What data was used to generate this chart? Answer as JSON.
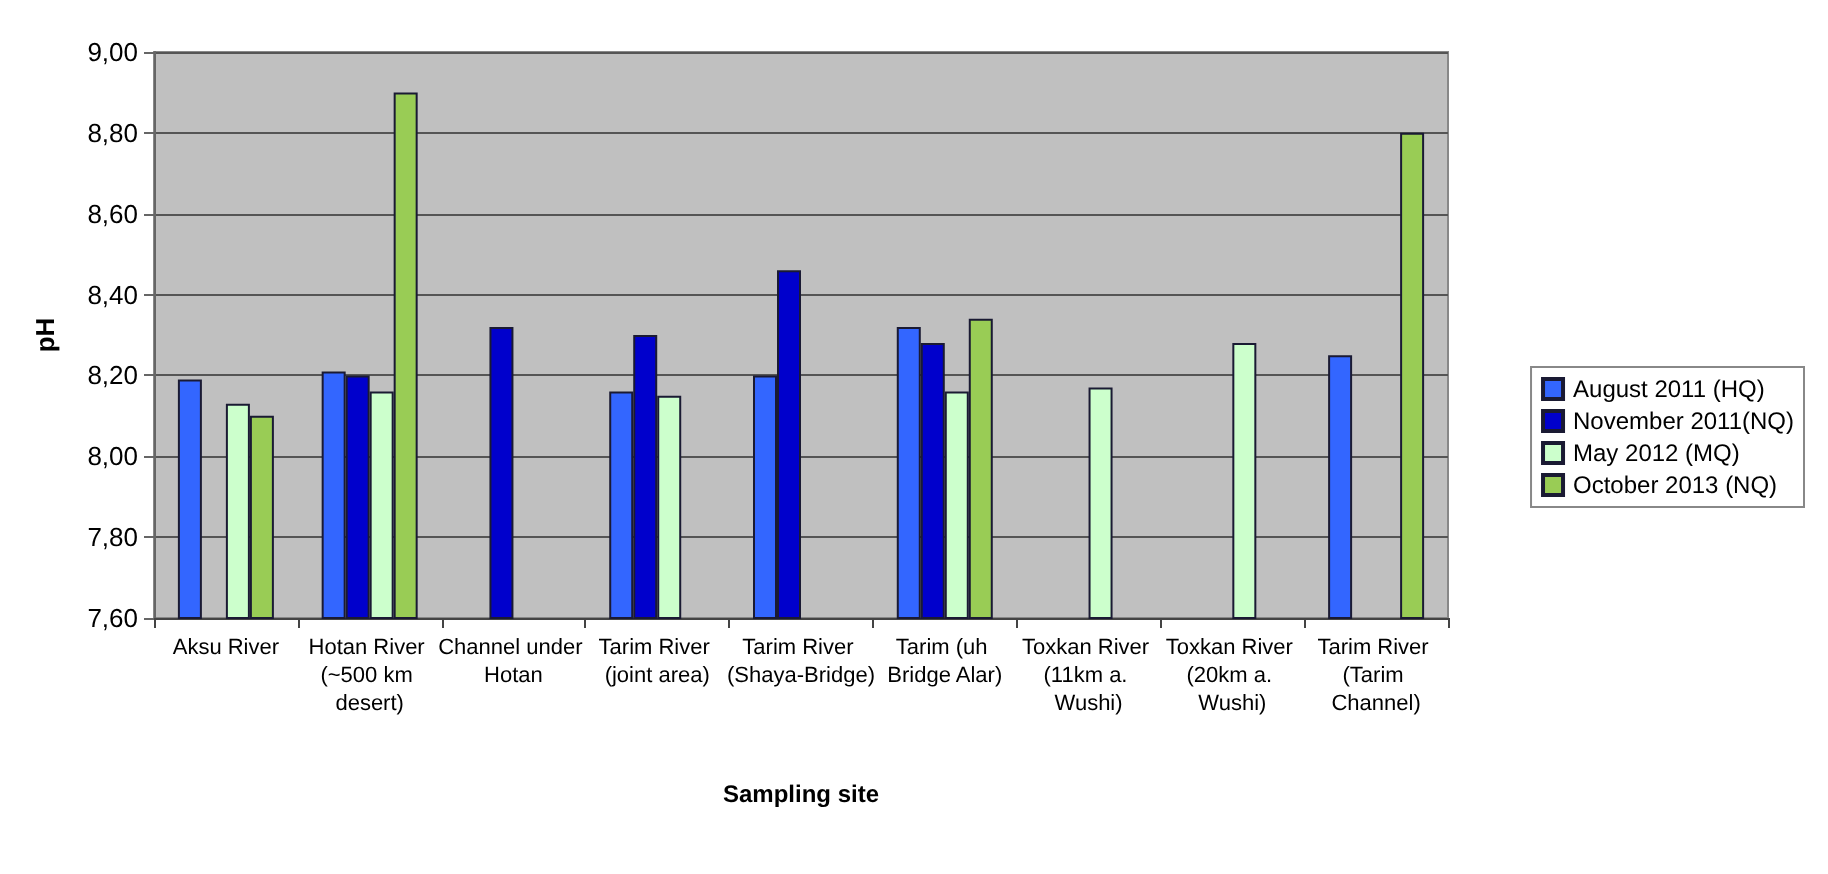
{
  "chart_data": {
    "type": "bar",
    "xlabel": "Sampling site",
    "ylabel": "pH",
    "categories": [
      "Aksu River",
      "Hotan River (~500 km desert)",
      "Channel under Hotan",
      "Tarim River (joint area)",
      "Tarim River (Shaya-Bridge)",
      "Tarim (uh Bridge Alar)",
      "Toxkan River (11km a. Wushi)",
      "Toxkan River (20km a. Wushi)",
      "Tarim River (Tarim Channel)"
    ],
    "series": [
      {
        "name": "August 2011 (HQ)",
        "color": "#3366ff",
        "values": [
          8.19,
          8.21,
          null,
          8.16,
          8.2,
          8.32,
          null,
          null,
          8.25
        ]
      },
      {
        "name": "November 2011(NQ)",
        "color": "#0000cc",
        "values": [
          null,
          8.2,
          8.32,
          8.3,
          8.46,
          8.28,
          null,
          null,
          null
        ]
      },
      {
        "name": "May 2012 (MQ)",
        "color": "#ccffcc",
        "values": [
          8.13,
          8.16,
          null,
          8.15,
          null,
          8.16,
          8.17,
          8.28,
          null
        ]
      },
      {
        "name": "October 2013 (NQ)",
        "color": "#99cc55",
        "values": [
          8.1,
          8.9,
          null,
          null,
          null,
          8.34,
          null,
          null,
          8.8
        ]
      }
    ],
    "ylim": [
      7.6,
      9.0
    ],
    "yticks": [
      {
        "value": 7.6,
        "label": "7,60"
      },
      {
        "value": 7.8,
        "label": "7,80"
      },
      {
        "value": 8.0,
        "label": "8,00"
      },
      {
        "value": 8.2,
        "label": "8,20"
      },
      {
        "value": 8.4,
        "label": "8,40"
      },
      {
        "value": 8.6,
        "label": "8,60"
      },
      {
        "value": 8.8,
        "label": "8,80"
      },
      {
        "value": 9.0,
        "label": "9,00"
      }
    ],
    "grid": "y",
    "legend": "right"
  }
}
